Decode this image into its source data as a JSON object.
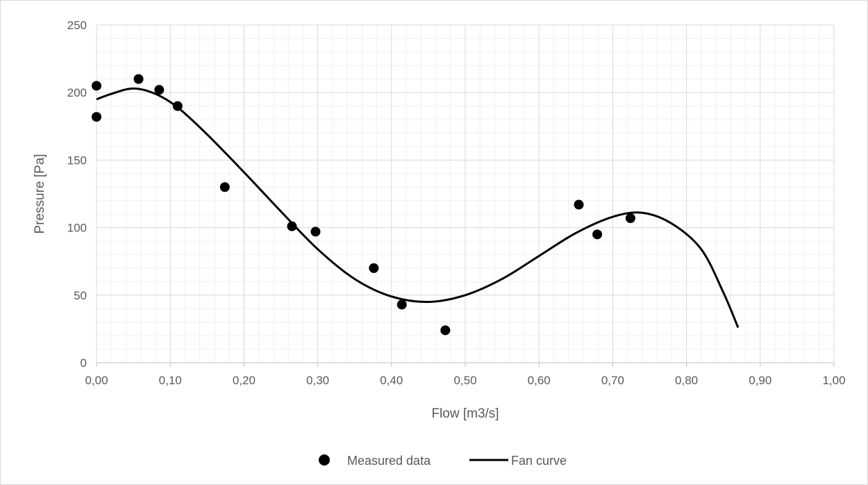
{
  "chart_data": {
    "type": "scatter",
    "title": "",
    "xlabel": "Flow [m3/s]",
    "ylabel": "Pressure [Pa]",
    "xlim": [
      0,
      1
    ],
    "ylim": [
      0,
      250
    ],
    "x_ticks": [
      "0,00",
      "0,10",
      "0,20",
      "0,30",
      "0,40",
      "0,50",
      "0,60",
      "0,70",
      "0,80",
      "0,90",
      "1,00"
    ],
    "y_ticks": [
      "0",
      "50",
      "100",
      "150",
      "200",
      "250"
    ],
    "grid": "major and minor",
    "legend_position": "bottom",
    "series": [
      {
        "name": "Measured data",
        "kind": "markers",
        "color": "#000000",
        "points": [
          [
            0.0,
            205
          ],
          [
            0.0,
            182
          ],
          [
            0.057,
            210
          ],
          [
            0.085,
            202
          ],
          [
            0.11,
            190
          ],
          [
            0.174,
            130
          ],
          [
            0.265,
            101
          ],
          [
            0.297,
            97
          ],
          [
            0.376,
            70
          ],
          [
            0.414,
            43
          ],
          [
            0.473,
            24
          ],
          [
            0.654,
            117
          ],
          [
            0.679,
            95
          ],
          [
            0.724,
            107
          ]
        ]
      },
      {
        "name": "Fan curve",
        "kind": "line",
        "color": "#000000",
        "points": [
          [
            0.0,
            195
          ],
          [
            0.02,
            199
          ],
          [
            0.05,
            203
          ],
          [
            0.08,
            199
          ],
          [
            0.11,
            189
          ],
          [
            0.15,
            169
          ],
          [
            0.2,
            141
          ],
          [
            0.25,
            112
          ],
          [
            0.3,
            84
          ],
          [
            0.35,
            62
          ],
          [
            0.4,
            49
          ],
          [
            0.45,
            45
          ],
          [
            0.5,
            50
          ],
          [
            0.55,
            62
          ],
          [
            0.6,
            79
          ],
          [
            0.65,
            96
          ],
          [
            0.7,
            108
          ],
          [
            0.74,
            111
          ],
          [
            0.78,
            103
          ],
          [
            0.82,
            84
          ],
          [
            0.85,
            52
          ],
          [
            0.87,
            26
          ]
        ]
      }
    ]
  }
}
